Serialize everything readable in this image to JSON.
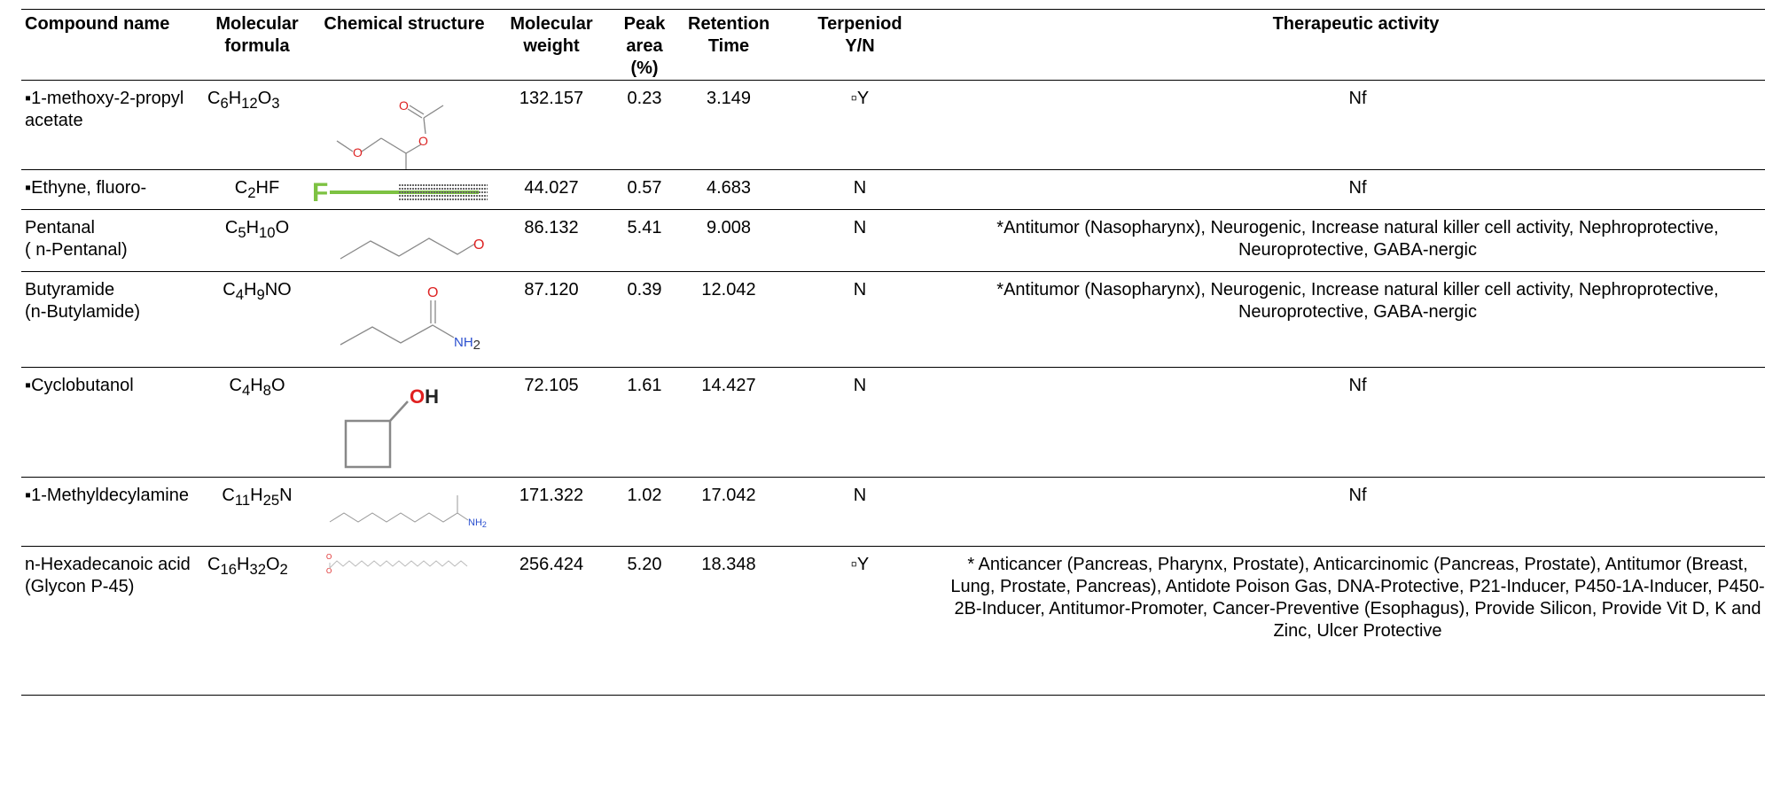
{
  "headers": {
    "compound_name": "Compound name",
    "molecular_formula_l1": "Molecular",
    "molecular_formula_l2": "formula",
    "chemical_structure": "Chemical structure",
    "molecular_weight_l1": "Molecular",
    "molecular_weight_l2": "weight",
    "peak_area_l1": "Peak area",
    "peak_area_l2": "(%)",
    "retention_l1": "Retention",
    "retention_l2": "Time",
    "terpenoid_l1": "Terpeniod",
    "terpenoid_l2": "Y/N",
    "therapeutic": "Therapeutic activity"
  },
  "rows": [
    {
      "name_l1": "▪1-methoxy-2-propyl",
      "name_l2": "acetate",
      "formula": [
        "C",
        "6",
        "H",
        "12",
        "O",
        "3"
      ],
      "weight": "132.157",
      "peak": "0.23",
      "retention": "3.149",
      "terpenoid": "▫Y",
      "activity": "Nf",
      "structure_labels": [
        "O",
        "O",
        "O"
      ]
    },
    {
      "name_l1": "▪Ethyne, fluoro-",
      "name_l2": "",
      "formula": [
        "C",
        "2",
        "HF",
        "",
        "",
        ""
      ],
      "weight": "44.027",
      "peak": "0.57",
      "retention": "4.683",
      "terpenoid": "N",
      "activity": "Nf",
      "structure_labels": [
        "F"
      ]
    },
    {
      "name_l1": "Pentanal",
      "name_l2": "( n-Pentanal)",
      "formula": [
        "C",
        "5",
        "H",
        "10",
        "O",
        ""
      ],
      "weight": "86.132",
      "peak": "5.41",
      "retention": "9.008",
      "terpenoid": "N",
      "activity": "*Antitumor (Nasopharynx), Neurogenic, Increase natural killer cell activity, Nephroprotective, Neuroprotective, GABA-nergic",
      "structure_labels": [
        "O"
      ]
    },
    {
      "name_l1": "Butyramide",
      "name_l2": "(n-Butylamide)",
      "formula": [
        "C",
        "4",
        "H",
        "9",
        "NO",
        ""
      ],
      "weight": "87.120",
      "peak": "0.39",
      "retention": "12.042",
      "terpenoid": "N",
      "activity": "*Antitumor (Nasopharynx), Neurogenic, Increase natural killer cell activity, Nephroprotective, Neuroprotective, GABA-nergic",
      "structure_labels": [
        "O",
        "NH",
        "2"
      ]
    },
    {
      "name_l1": "▪Cyclobutanol",
      "name_l2": "",
      "formula": [
        "C",
        "4",
        "H",
        "8",
        "O",
        ""
      ],
      "weight": "72.105",
      "peak": "1.61",
      "retention": "14.427",
      "terpenoid": "N",
      "activity": "Nf",
      "structure_labels": [
        "O",
        "H"
      ]
    },
    {
      "name_l1": "▪1-Methyldecylamine",
      "name_l2": "",
      "formula": [
        "C",
        "11",
        "H",
        "25",
        "N",
        ""
      ],
      "weight": "171.322",
      "peak": "1.02",
      "retention": "17.042",
      "terpenoid": "N",
      "activity": "Nf",
      "structure_labels": [
        "NH",
        "2"
      ]
    },
    {
      "name_l1": "n-Hexadecanoic acid",
      "name_l2": "(Glycon P-45)",
      "formula": [
        "C",
        "16",
        "H",
        "32",
        "O",
        "2"
      ],
      "weight": "256.424",
      "peak": "5.20",
      "retention": "18.348",
      "terpenoid": "▫Y",
      "activity": "* Anticancer (Pancreas, Pharynx, Prostate), Anticarcinomic (Pancreas, Prostate), Antitumor (Breast, Lung, Prostate, Pancreas), Antidote Poison Gas, DNA-Protective, P21-Inducer, P450-1A-Inducer, P450-2B-Inducer, Antitumor-Promoter, Cancer-Preventive (Esophagus), Provide Silicon, Provide Vit D, K and Zinc, Ulcer Protective",
      "structure_labels": [
        "O",
        "O"
      ]
    }
  ]
}
